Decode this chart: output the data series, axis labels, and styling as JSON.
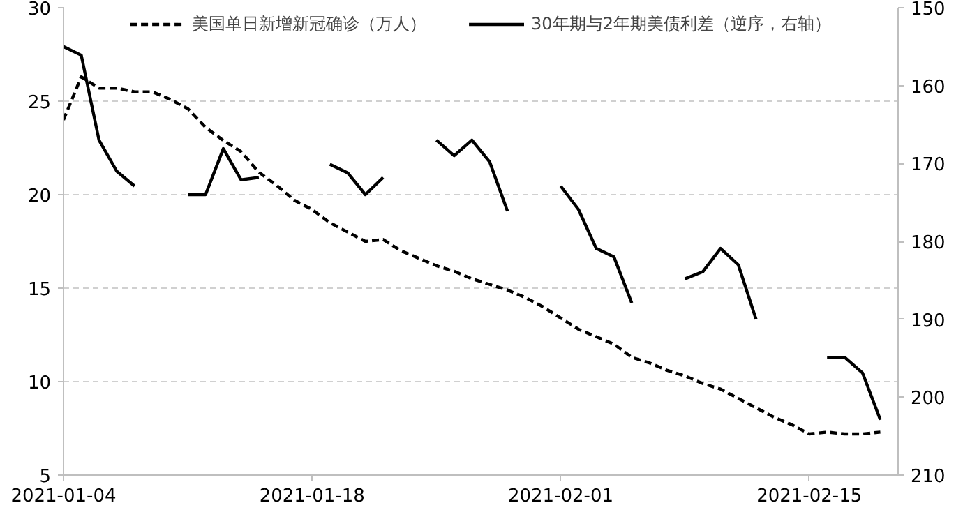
{
  "chart_data": {
    "type": "line",
    "x": [
      "2021-01-04",
      "2021-01-05",
      "2021-01-06",
      "2021-01-07",
      "2021-01-08",
      "2021-01-09",
      "2021-01-10",
      "2021-01-11",
      "2021-01-12",
      "2021-01-13",
      "2021-01-14",
      "2021-01-15",
      "2021-01-16",
      "2021-01-17",
      "2021-01-18",
      "2021-01-19",
      "2021-01-20",
      "2021-01-21",
      "2021-01-22",
      "2021-01-23",
      "2021-01-24",
      "2021-01-25",
      "2021-01-26",
      "2021-01-27",
      "2021-01-28",
      "2021-01-29",
      "2021-01-30",
      "2021-01-31",
      "2021-02-01",
      "2021-02-02",
      "2021-02-03",
      "2021-02-04",
      "2021-02-05",
      "2021-02-06",
      "2021-02-07",
      "2021-02-08",
      "2021-02-09",
      "2021-02-10",
      "2021-02-11",
      "2021-02-12",
      "2021-02-13",
      "2021-02-14",
      "2021-02-15",
      "2021-02-16",
      "2021-02-17",
      "2021-02-18",
      "2021-02-19"
    ],
    "series": [
      {
        "name": "美国单日新增新冠确诊（万人）",
        "color": "#000000",
        "line_style": "dashed",
        "values": [
          24.0,
          26.3,
          25.7,
          25.7,
          25.5,
          25.5,
          25.1,
          24.6,
          23.6,
          22.9,
          22.3,
          21.2,
          20.5,
          19.7,
          19.2,
          18.5,
          18.0,
          17.5,
          17.6,
          17.0,
          16.6,
          16.2,
          15.9,
          15.5,
          15.2,
          14.9,
          14.5,
          14.0,
          13.4,
          12.8,
          12.4,
          12.0,
          11.3,
          11.0,
          10.6,
          10.3,
          9.9,
          9.6,
          9.1,
          8.6,
          8.1,
          7.7,
          7.2,
          7.3,
          7.2,
          7.2,
          7.3
        ]
      },
      {
        "name": "30年期与2年期美债利差（逆序，右轴）",
        "color": "#000000",
        "line_style": "solid",
        "axis": "y2",
        "values": [
          155.0,
          156.1,
          167.0,
          171.0,
          172.9,
          null,
          null,
          174.0,
          174.0,
          168.1,
          172.1,
          171.8,
          null,
          null,
          null,
          170.1,
          171.2,
          174.0,
          171.8,
          null,
          null,
          167.0,
          169.0,
          167.0,
          169.8,
          176.1,
          null,
          null,
          172.9,
          175.9,
          180.9,
          182.0,
          187.9,
          null,
          null,
          184.8,
          183.9,
          180.9,
          183.0,
          190.0,
          null,
          null,
          null,
          194.9,
          194.9,
          196.9,
          202.9
        ]
      }
    ],
    "xlim": [
      "2021-01-04",
      "2021-02-20"
    ],
    "xticks": [
      {
        "value": "2021-01-04",
        "label": "2021-01-04"
      },
      {
        "value": "2021-01-18",
        "label": "2021-01-18"
      },
      {
        "value": "2021-02-01",
        "label": "2021-02-01"
      },
      {
        "value": "2021-02-15",
        "label": "2021-02-15"
      }
    ],
    "ylim": [
      5,
      30
    ],
    "yticks": [
      5,
      10,
      15,
      20,
      25,
      30
    ],
    "y2lim": [
      210,
      150
    ],
    "y2ticks": [
      150,
      160,
      170,
      180,
      190,
      200,
      210
    ],
    "grid": "y",
    "legend": "top",
    "marker": "none"
  }
}
